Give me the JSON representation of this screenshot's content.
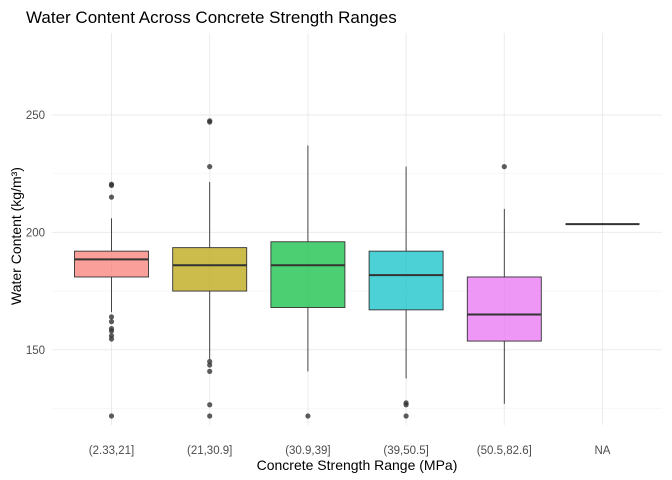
{
  "chart_data": {
    "type": "box",
    "title": "Water Content Across Concrete Strength Ranges",
    "xlabel": "Concrete Strength Range (MPa)",
    "ylabel": "Water Content (kg/m³)",
    "ylim": [
      121.8,
      247
    ],
    "yticks": [
      150,
      200,
      250
    ],
    "grid": true,
    "legend": "none",
    "categories": [
      "(2.33,21]",
      "(21,30.9]",
      "(30.9,39]",
      "(39,50.5]",
      "(50.5,82.6]",
      "NA"
    ],
    "colors": [
      "#F8766D",
      "#B79F00",
      "#00BA38",
      "#00BFC4",
      "#E76BF3",
      "#F564E3"
    ],
    "boxes": [
      {
        "q1": 181.0,
        "median": 188.5,
        "q3": 192.0,
        "whisker_low": 166.0,
        "whisker_high": 206.0,
        "outliers": [
          220.0,
          220.5,
          215.0,
          164.0,
          162.0,
          159.0,
          158.0,
          156.0,
          154.6,
          121.8
        ]
      },
      {
        "q1": 175.0,
        "median": 186.0,
        "q3": 193.5,
        "whisker_low": 146.0,
        "whisker_high": 221.5,
        "outliers": [
          247.0,
          247.5,
          228.0,
          145.0,
          143.5,
          140.8,
          126.6,
          121.8
        ]
      },
      {
        "q1": 168.0,
        "median": 186.0,
        "q3": 196.0,
        "whisker_low": 140.8,
        "whisker_high": 237.0,
        "outliers": [
          121.8
        ]
      },
      {
        "q1": 167.0,
        "median": 181.8,
        "q3": 192.0,
        "whisker_low": 137.8,
        "whisker_high": 228.0,
        "outliers": [
          127.4,
          126.6,
          121.8
        ]
      },
      {
        "q1": 153.7,
        "median": 165.0,
        "q3": 181.0,
        "whisker_low": 127.0,
        "whisker_high": 210.0,
        "outliers": [
          228.0
        ]
      },
      {
        "q1": 203.5,
        "median": 203.5,
        "q3": 203.5,
        "whisker_low": 203.5,
        "whisker_high": 203.5,
        "outliers": []
      }
    ]
  }
}
